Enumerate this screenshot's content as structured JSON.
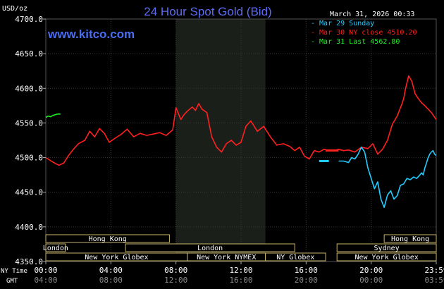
{
  "chart_data": {
    "type": "line",
    "title": "24 Hour Spot Gold (Bid)",
    "site": "www.kitco.com",
    "timestamp": "March 31, 2026 00:33",
    "y_unit": "USD/oz",
    "ylim": [
      4350,
      4700
    ],
    "y_ticks": [
      "4700.0",
      "4650.0",
      "4600.0",
      "4550.0",
      "4500.0",
      "4450.0",
      "4400.0",
      "4350.0"
    ],
    "x_range_hours": [
      0,
      24
    ],
    "ny_time_label": "NY Time",
    "gmt_label": "GMT",
    "x_ticks_ny": [
      "00:00",
      "04:00",
      "08:00",
      "12:00",
      "16:00",
      "20:00",
      "23:59"
    ],
    "x_ticks_gmt": [
      "04:00",
      "08:00",
      "12:00",
      "16:00",
      "20:00",
      "00:00",
      "03:59"
    ],
    "legend_position": "top-right",
    "legend": [
      {
        "label": "- Mar 29 Sunday",
        "color": "#22ccff"
      },
      {
        "label": "- Mar 30 NY close 4510.20",
        "color": "#ff2020"
      },
      {
        "label": "- Mar 31 Last 4562.80",
        "color": "#22ee22"
      }
    ],
    "shaded_hours": [
      8.0,
      13.5
    ],
    "close_value": 4510.2,
    "series": [
      {
        "name": "Mar 30 NY close 4510.20",
        "color": "#ff2020",
        "x": [
          0,
          0.4,
          0.8,
          1.1,
          1.4,
          1.7,
          2.0,
          2.4,
          2.7,
          3.0,
          3.3,
          3.6,
          3.9,
          4.2,
          4.6,
          5.0,
          5.4,
          5.8,
          6.2,
          6.6,
          7.0,
          7.4,
          7.8,
          8.0,
          8.3,
          8.5,
          8.7,
          9.0,
          9.2,
          9.4,
          9.6,
          9.9,
          10.2,
          10.5,
          10.8,
          11.1,
          11.4,
          11.7,
          12.0,
          12.3,
          12.6,
          13.0,
          13.4,
          13.8,
          14.2,
          14.6,
          15.0,
          15.3,
          15.6,
          15.9,
          16.2,
          16.5,
          16.8,
          17.1,
          17.4,
          17.7,
          18.0,
          18.3,
          18.6,
          19.0,
          19.4,
          19.8,
          20.1,
          20.4,
          20.7,
          21.0,
          21.3,
          21.6,
          21.9,
          22.0,
          22.1,
          22.3,
          22.5,
          22.7,
          22.9,
          23.1,
          23.3,
          23.5,
          23.7,
          23.85,
          23.99
        ],
        "values": [
          4500,
          4494,
          4489,
          4492,
          4503,
          4512,
          4520,
          4525,
          4538,
          4530,
          4542,
          4535,
          4522,
          4527,
          4533,
          4541,
          4530,
          4535,
          4532,
          4534,
          4536,
          4532,
          4540,
          4572,
          4555,
          4562,
          4567,
          4573,
          4568,
          4578,
          4570,
          4565,
          4530,
          4515,
          4508,
          4520,
          4525,
          4518,
          4522,
          4545,
          4553,
          4538,
          4545,
          4530,
          4518,
          4520,
          4516,
          4510,
          4515,
          4502,
          4498,
          4510,
          4508,
          4512,
          4510,
          4510,
          4512,
          4510,
          4511,
          4508,
          4515,
          4513,
          4520,
          4505,
          4512,
          4525,
          4548,
          4560,
          4578,
          4585,
          4598,
          4618,
          4610,
          4592,
          4585,
          4579,
          4575,
          4570,
          4565,
          4560,
          4555
        ]
      },
      {
        "name": "Mar 29 Sunday",
        "color": "#22ccff",
        "x": [
          18.0,
          18.3,
          18.6,
          18.8,
          19.0,
          19.2,
          19.4,
          19.6,
          19.8,
          20.0,
          20.2,
          20.4,
          20.6,
          20.8,
          21.0,
          21.2,
          21.4,
          21.6,
          21.8,
          22.0,
          22.2,
          22.4,
          22.6,
          22.8,
          23.0,
          23.1,
          23.2,
          23.3,
          23.4,
          23.5,
          23.6,
          23.7,
          23.8,
          23.9,
          23.99
        ],
        "values": [
          4495,
          4495,
          4493,
          4500,
          4498,
          4505,
          4515,
          4508,
          4485,
          4470,
          4455,
          4465,
          4440,
          4428,
          4446,
          4452,
          4440,
          4445,
          4460,
          4462,
          4470,
          4468,
          4472,
          4470,
          4475,
          4478,
          4475,
          4485,
          4492,
          4500,
          4505,
          4508,
          4510,
          4505,
          4503
        ]
      },
      {
        "name": "Mar 31 Last 4562.80",
        "color": "#22ee22",
        "x": [
          0,
          0.15,
          0.3,
          0.45,
          0.6,
          0.75,
          0.9
        ],
        "values": [
          4558,
          4560,
          4559,
          4561,
          4562,
          4563,
          4562.8
        ]
      }
    ],
    "sessions": [
      {
        "label": "Hong Kong",
        "start": 0.0,
        "end": 7.6,
        "row": 0
      },
      {
        "label": "Hong Kong",
        "start": 20.8,
        "end": 24.0,
        "row": 0
      },
      {
        "label": "London",
        "start": 0.0,
        "end": 1.2,
        "row": 1
      },
      {
        "label": "London",
        "start": 4.9,
        "end": 15.3,
        "row": 1
      },
      {
        "label": "Sydney",
        "start": 17.9,
        "end": 24.0,
        "row": 1
      },
      {
        "label": "New York Globex",
        "start": 0.0,
        "end": 8.7,
        "row": 2
      },
      {
        "label": "New York NYMEX",
        "start": 8.7,
        "end": 13.5,
        "row": 2
      },
      {
        "label": "NY Globex",
        "start": 13.5,
        "end": 17.2,
        "row": 2
      },
      {
        "label": "New York Globex",
        "start": 17.9,
        "end": 24.0,
        "row": 2
      }
    ]
  }
}
